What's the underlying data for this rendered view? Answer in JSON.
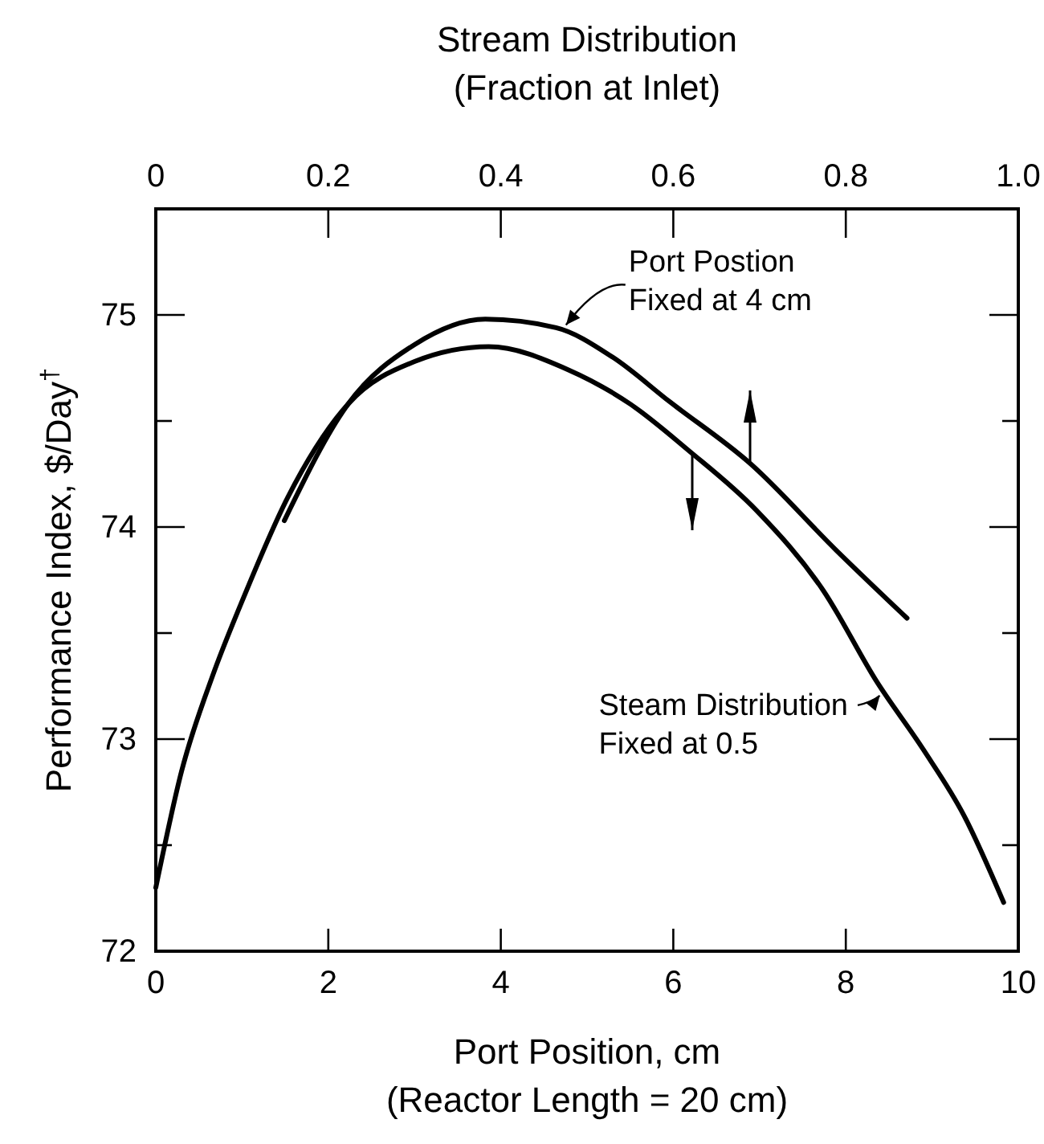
{
  "chart_data": {
    "type": "line",
    "x2label": "Stream Distribution\n(Fraction at Inlet)",
    "xlabel": "Port Position, cm\n(Reactor Length = 20 cm)",
    "ylabel": "Performance Index, $/Day$^{†}$",
    "xlim": [
      0,
      10
    ],
    "xticks": [
      0,
      2,
      4,
      6,
      8,
      10
    ],
    "x2lim": [
      0,
      1
    ],
    "x2ticks": [
      0,
      0.2,
      0.4,
      0.6,
      0.8,
      {
        "value": 1,
        "label": "1.0"
      }
    ],
    "ylim": [
      72,
      75.5
    ],
    "yticks": [
      72,
      {
        "value": 72.5,
        "label": null
      },
      73,
      {
        "value": 73.5,
        "label": null
      },
      74,
      {
        "value": 74.5,
        "label": null
      },
      75
    ],
    "grid": false,
    "marker": "none",
    "line_style": "solid",
    "series": [
      {
        "color": "#000000",
        "x": [
          0,
          0.3,
          0.66,
          1.0,
          1.53,
          2.23,
          3.0,
          3.86,
          4.79,
          5.5,
          6.18,
          6.96,
          7.74,
          8.36,
          8.9,
          9.37,
          9.83
        ],
        "values": [
          72.3,
          72.85,
          73.3,
          73.65,
          74.14,
          74.58,
          74.78,
          74.85,
          74.74,
          74.58,
          74.36,
          74.08,
          73.7,
          73.27,
          72.95,
          72.64,
          72.23
        ]
      },
      {
        "color": "#000000",
        "axis": "x2",
        "x": [
          0.149,
          0.223,
          0.3,
          0.382,
          0.464,
          0.53,
          0.596,
          0.689,
          0.789,
          0.871
        ],
        "values": [
          74.03,
          74.58,
          74.86,
          74.98,
          74.94,
          74.8,
          74.59,
          74.3,
          73.89,
          73.57
        ]
      }
    ],
    "annotations": [
      {
        "text": "Port Postion\nFixed at 4 cm",
        "x": 4.7,
        "y": 74.93
      },
      {
        "text": "Steam Distribution\nFixed at 0.5",
        "x": 8.45,
        "y": 73.22
      }
    ]
  }
}
